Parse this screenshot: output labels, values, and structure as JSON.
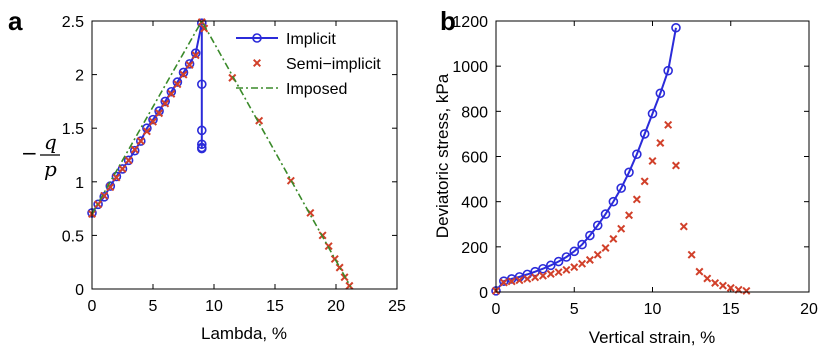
{
  "colors": {
    "implicit": "#2b2bd9",
    "semi_implicit": "#d1402a",
    "imposed": "#3a8a2a"
  },
  "chart_data": [
    {
      "panel": "a",
      "type": "line",
      "xlabel": "Lambda, %",
      "ylabel_minus": "−",
      "ylabel_num": "q",
      "ylabel_den": "p",
      "xlim": [
        0,
        25
      ],
      "ylim": [
        0,
        2.5
      ],
      "xticks": [
        0,
        5,
        10,
        15,
        20,
        25
      ],
      "yticks": [
        0,
        0.5,
        1,
        1.5,
        2,
        2.5
      ],
      "ytick_labels": [
        "0",
        "0.5",
        "1",
        "1.5",
        "2",
        "2.5"
      ],
      "legend": {
        "position": "top-right",
        "entries": [
          {
            "key": "implicit",
            "label": "Implicit"
          },
          {
            "key": "semi_implicit",
            "label": "Semi−implicit"
          },
          {
            "key": "imposed",
            "label": "Imposed"
          }
        ]
      },
      "series": [
        {
          "name": "Implicit",
          "key": "implicit",
          "style": "line-circle",
          "x": [
            0,
            0.5,
            1,
            1.5,
            2,
            2.5,
            3,
            3.5,
            4,
            4.5,
            5,
            5.5,
            6,
            6.5,
            7,
            7.5,
            8,
            8.5,
            9,
            9,
            9,
            9,
            9,
            9
          ],
          "y": [
            0.71,
            0.79,
            0.86,
            0.96,
            1.05,
            1.12,
            1.2,
            1.29,
            1.38,
            1.5,
            1.58,
            1.66,
            1.75,
            1.84,
            1.93,
            2.02,
            2.1,
            2.2,
            2.48,
            1.91,
            1.48,
            1.35,
            1.32,
            1.31
          ]
        },
        {
          "name": "Semi−implicit",
          "key": "semi_implicit",
          "style": "cross",
          "x": [
            0,
            0.5,
            1,
            1.5,
            2,
            2.5,
            3,
            3.5,
            4,
            4.5,
            5,
            5.5,
            6,
            6.5,
            7,
            7.5,
            8,
            8.5,
            9,
            9.2,
            11.5,
            13.7,
            16.3,
            17.9,
            18.9,
            19.4,
            19.9,
            20.3,
            20.7,
            21.1
          ],
          "y": [
            0.7,
            0.79,
            0.87,
            0.95,
            1.04,
            1.12,
            1.2,
            1.3,
            1.38,
            1.47,
            1.56,
            1.64,
            1.73,
            1.82,
            1.91,
            2.0,
            2.09,
            2.18,
            2.49,
            2.43,
            1.97,
            1.57,
            1.01,
            0.71,
            0.5,
            0.4,
            0.28,
            0.2,
            0.11,
            0.03
          ]
        },
        {
          "name": "Imposed",
          "key": "imposed",
          "style": "dashdot",
          "x": [
            0,
            9,
            21.2
          ],
          "y": [
            0.7,
            2.5,
            0.02
          ]
        }
      ]
    },
    {
      "panel": "b",
      "type": "line",
      "xlabel": "Vertical strain, %",
      "ylabel": "Deviatoric stress, kPa",
      "xlim": [
        0,
        20
      ],
      "ylim": [
        0,
        1200
      ],
      "xticks": [
        0,
        5,
        10,
        15,
        20
      ],
      "yticks": [
        0,
        200,
        400,
        600,
        800,
        1000,
        1200
      ],
      "ytick_labels": [
        "0",
        "200",
        "400",
        "600",
        "800",
        "1000",
        "1200"
      ],
      "series": [
        {
          "name": "Implicit",
          "key": "implicit",
          "style": "line-circle",
          "x": [
            0,
            0.5,
            1,
            1.5,
            2,
            2.5,
            3,
            3.5,
            4,
            4.5,
            5,
            5.5,
            6,
            6.5,
            7,
            7.5,
            8,
            8.5,
            9,
            9.5,
            10,
            10.5,
            11,
            11.5
          ],
          "y": [
            5,
            48,
            58,
            67,
            78,
            90,
            103,
            118,
            135,
            155,
            180,
            210,
            250,
            295,
            345,
            400,
            460,
            530,
            610,
            700,
            790,
            880,
            980,
            1170
          ]
        },
        {
          "name": "Semi−implicit",
          "key": "semi_implicit",
          "style": "cross",
          "x": [
            0,
            0.5,
            1,
            1.5,
            2,
            2.5,
            3,
            3.5,
            4,
            4.5,
            5,
            5.5,
            6,
            6.5,
            7,
            7.5,
            8,
            8.5,
            9,
            9.5,
            10,
            10.5,
            11,
            11.5,
            12,
            12.5,
            13,
            13.5,
            14,
            14.5,
            15,
            15.5,
            16
          ],
          "y": [
            5,
            42,
            47,
            52,
            58,
            65,
            72,
            80,
            88,
            98,
            110,
            125,
            142,
            165,
            195,
            235,
            280,
            340,
            410,
            490,
            580,
            660,
            740,
            560,
            290,
            165,
            90,
            60,
            40,
            28,
            18,
            10,
            5
          ]
        }
      ]
    }
  ]
}
